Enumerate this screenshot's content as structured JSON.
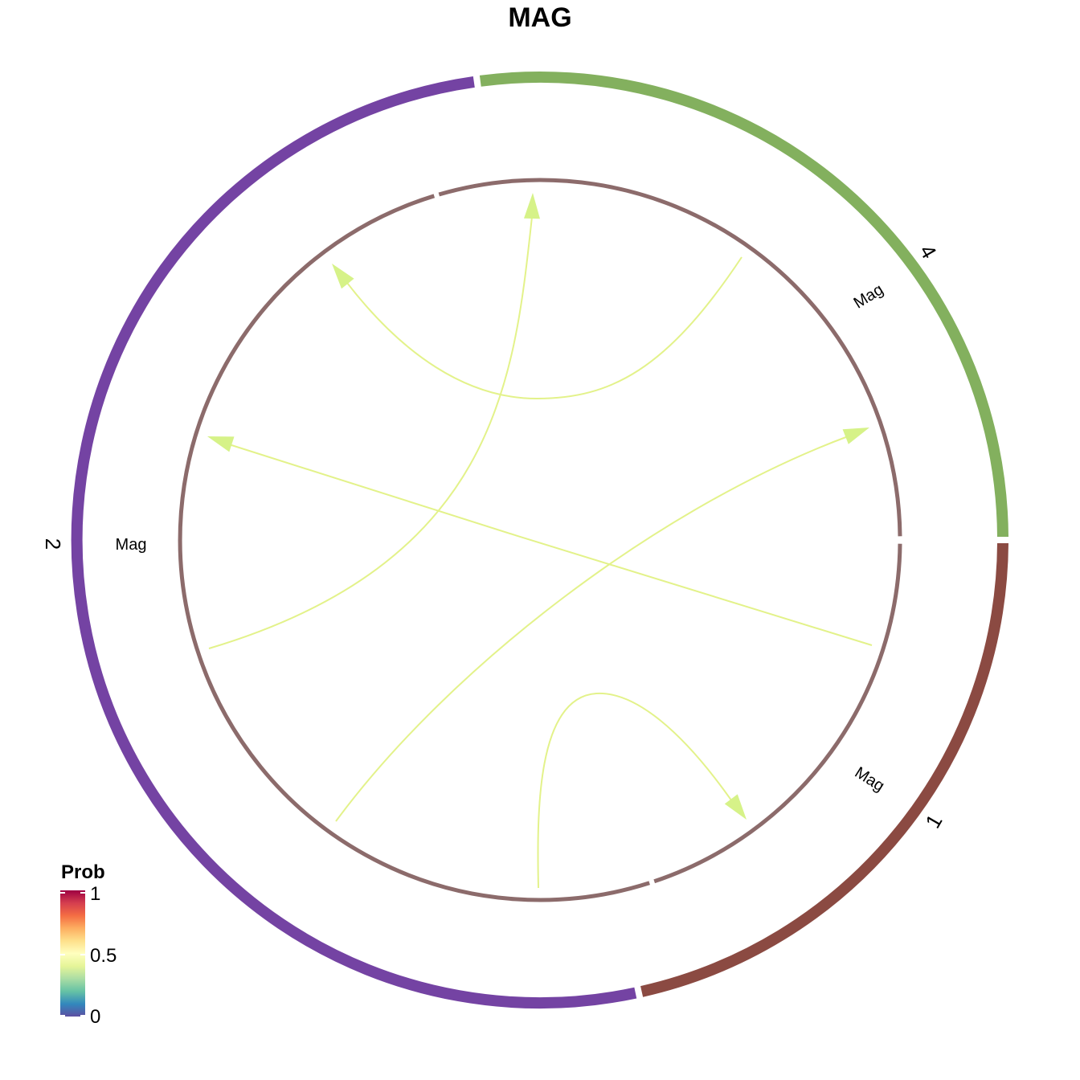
{
  "title": "MAG",
  "colors": {
    "inner_ring": "#8c6b6b",
    "link": "#e3f28a",
    "arrow": "#d6f288",
    "colorbar": [
      "#5e4fa2",
      "#3288bd",
      "#66c2a5",
      "#abdda4",
      "#e6f598",
      "#ffffbf",
      "#fee08b",
      "#fdae61",
      "#f46d43",
      "#d53e4f",
      "#9e0142"
    ]
  },
  "sectors": [
    {
      "id": "1",
      "label": "1",
      "color": "#8b4a42"
    },
    {
      "id": "2",
      "label": "2",
      "color": "#7443a3"
    },
    {
      "id": "4",
      "label": "4",
      "color": "#83b05e"
    }
  ],
  "ligand_labels": [
    {
      "sector": "1",
      "text": "Mag"
    },
    {
      "sector": "2",
      "text": "Mag"
    },
    {
      "sector": "4",
      "text": "Mag"
    }
  ],
  "links": [
    {
      "from": "1",
      "to": "1",
      "prob": 0.5
    },
    {
      "from": "1",
      "to": "2",
      "prob": 0.5
    },
    {
      "from": "1",
      "to": "4",
      "prob": 0.5
    },
    {
      "from": "2",
      "to": "2",
      "prob": 0.5
    },
    {
      "from": "4",
      "to": "2",
      "prob": 0.5
    }
  ],
  "legend": {
    "title": "Prob",
    "ticks": [
      "1",
      "0.5",
      "0"
    ]
  }
}
